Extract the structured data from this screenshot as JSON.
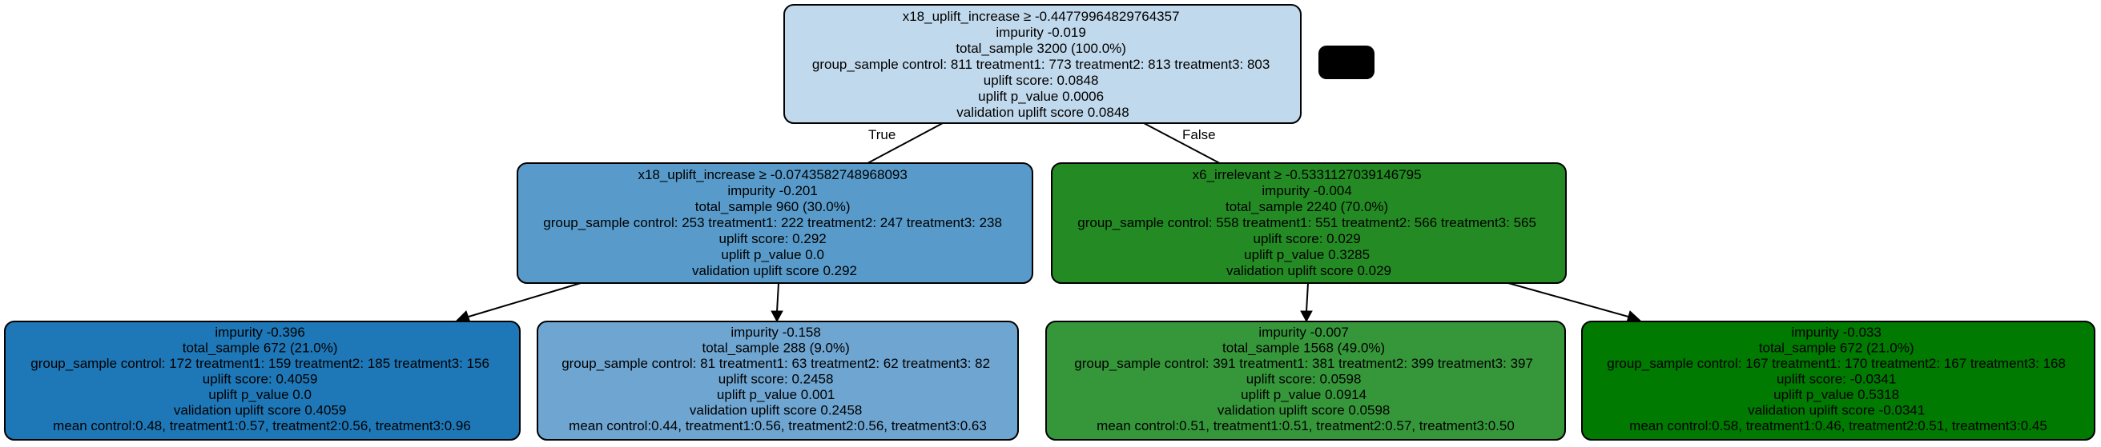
{
  "root": {
    "fill": "#c1d9ec",
    "lines": [
      "x18_uplift_increase ≥ -0.44779964829764357",
      "impurity -0.019",
      "total_sample 3200 (100.0%)",
      "group_sample  control: 811 treatment1: 773 treatment2: 813 treatment3: 803",
      "uplift score: 0.0848",
      "uplift p_value 0.0006",
      "validation uplift score 0.0848"
    ]
  },
  "left": {
    "fill": "#589ac9",
    "lines": [
      "x18_uplift_increase ≥ -0.0743582748968093",
      "impurity -0.201",
      "total_sample 960 (30.0%)",
      "group_sample  control: 253 treatment1: 222 treatment2: 247 treatment3: 238",
      "uplift score: 0.292",
      "uplift p_value 0.0",
      "validation uplift score 0.292"
    ]
  },
  "right": {
    "fill": "#248b24",
    "lines": [
      "x6_irrelevant ≥ -0.5331127039146795",
      "impurity -0.004",
      "total_sample 2240 (70.0%)",
      "group_sample  control: 558 treatment1: 551 treatment2: 566 treatment3: 565",
      "uplift score: 0.029",
      "uplift p_value 0.3285",
      "validation uplift score 0.029"
    ]
  },
  "leaf1": {
    "fill": "#1e78b8",
    "lines": [
      "impurity -0.396",
      "total_sample 672 (21.0%)",
      "group_sample  control: 172 treatment1: 159 treatment2: 185 treatment3: 156",
      "uplift score: 0.4059",
      "uplift p_value 0.0",
      "validation uplift score 0.4059",
      "mean control:0.48, treatment1:0.57, treatment2:0.56, treatment3:0.96"
    ]
  },
  "leaf2": {
    "fill": "#6ea5d1",
    "lines": [
      "impurity -0.158",
      "total_sample 288 (9.0%)",
      "group_sample  control: 81 treatment1: 63 treatment2: 62 treatment3: 82",
      "uplift score: 0.2458",
      "uplift p_value 0.001",
      "validation uplift score 0.2458",
      "mean control:0.44, treatment1:0.56, treatment2:0.56, treatment3:0.63"
    ]
  },
  "leaf3": {
    "fill": "#36973a",
    "lines": [
      "impurity -0.007",
      "total_sample 1568 (49.0%)",
      "group_sample  control: 391 treatment1: 381 treatment2: 399 treatment3: 397",
      "uplift score: 0.0598",
      "uplift p_value 0.0914",
      "validation uplift score 0.0598",
      "mean control:0.51, treatment1:0.51, treatment2:0.57, treatment3:0.50"
    ]
  },
  "leaf4": {
    "fill": "#007a00",
    "lines": [
      "impurity -0.033",
      "total_sample 672 (21.0%)",
      "group_sample  control: 167 treatment1: 170 treatment2: 167 treatment3: 168",
      "uplift score: -0.0341",
      "uplift p_value 0.5318",
      "validation uplift score -0.0341",
      "mean control:0.58, treatment1:0.46, treatment2:0.51, treatment3:0.45"
    ]
  },
  "edges": {
    "true_label": "True",
    "false_label": "False"
  },
  "legend_box": {
    "fill": "#000000"
  }
}
